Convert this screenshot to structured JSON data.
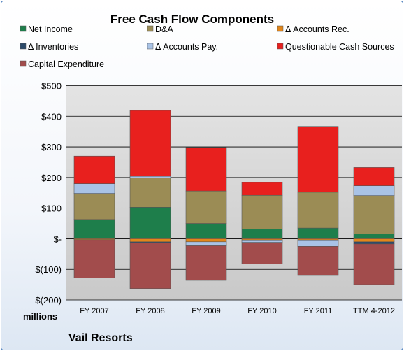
{
  "chart_data": {
    "type": "bar",
    "stacked": true,
    "title": "Free Cash Flow Components",
    "categories": [
      "FY 2007",
      "FY 2008",
      "FY 2009",
      "FY 2010",
      "FY 2011",
      "TTM 4-2012"
    ],
    "series": [
      {
        "name": "Net Income",
        "color": "#1e7e4b",
        "values": [
          63,
          103,
          50,
          32,
          35,
          16
        ]
      },
      {
        "name": "D&A",
        "color": "#9b8c55",
        "values": [
          85,
          96,
          106,
          110,
          117,
          125
        ]
      },
      {
        "name": "Δ Accounts Rec.",
        "color": "#e2861a",
        "values": [
          -3,
          -10,
          -10,
          -4,
          -4,
          -10
        ]
      },
      {
        "name": "Δ Inventories",
        "color": "#2c4a6a",
        "values": [
          0,
          -3,
          0,
          0,
          0,
          -7
        ]
      },
      {
        "name": "Δ Accounts Pay.",
        "color": "#a9c3e6",
        "values": [
          32,
          5,
          -13,
          -8,
          -21,
          32
        ]
      },
      {
        "name": "Questionable Cash Sources",
        "color": "#e8201e",
        "values": [
          90,
          215,
          142,
          42,
          215,
          60
        ]
      },
      {
        "name": "Capital Expenditure",
        "color": "#a24c4c",
        "values": [
          -125,
          -150,
          -113,
          -70,
          -95,
          -133
        ]
      }
    ],
    "yticks": [
      "$500",
      "$400",
      "$300",
      "$200",
      "$100",
      "$-",
      "$(100)",
      "$(200)"
    ],
    "ylim": [
      -200,
      500
    ],
    "ylabel": "millions",
    "grid": true,
    "legend_position": "top"
  },
  "footer": {
    "company": "Vail Resorts"
  }
}
